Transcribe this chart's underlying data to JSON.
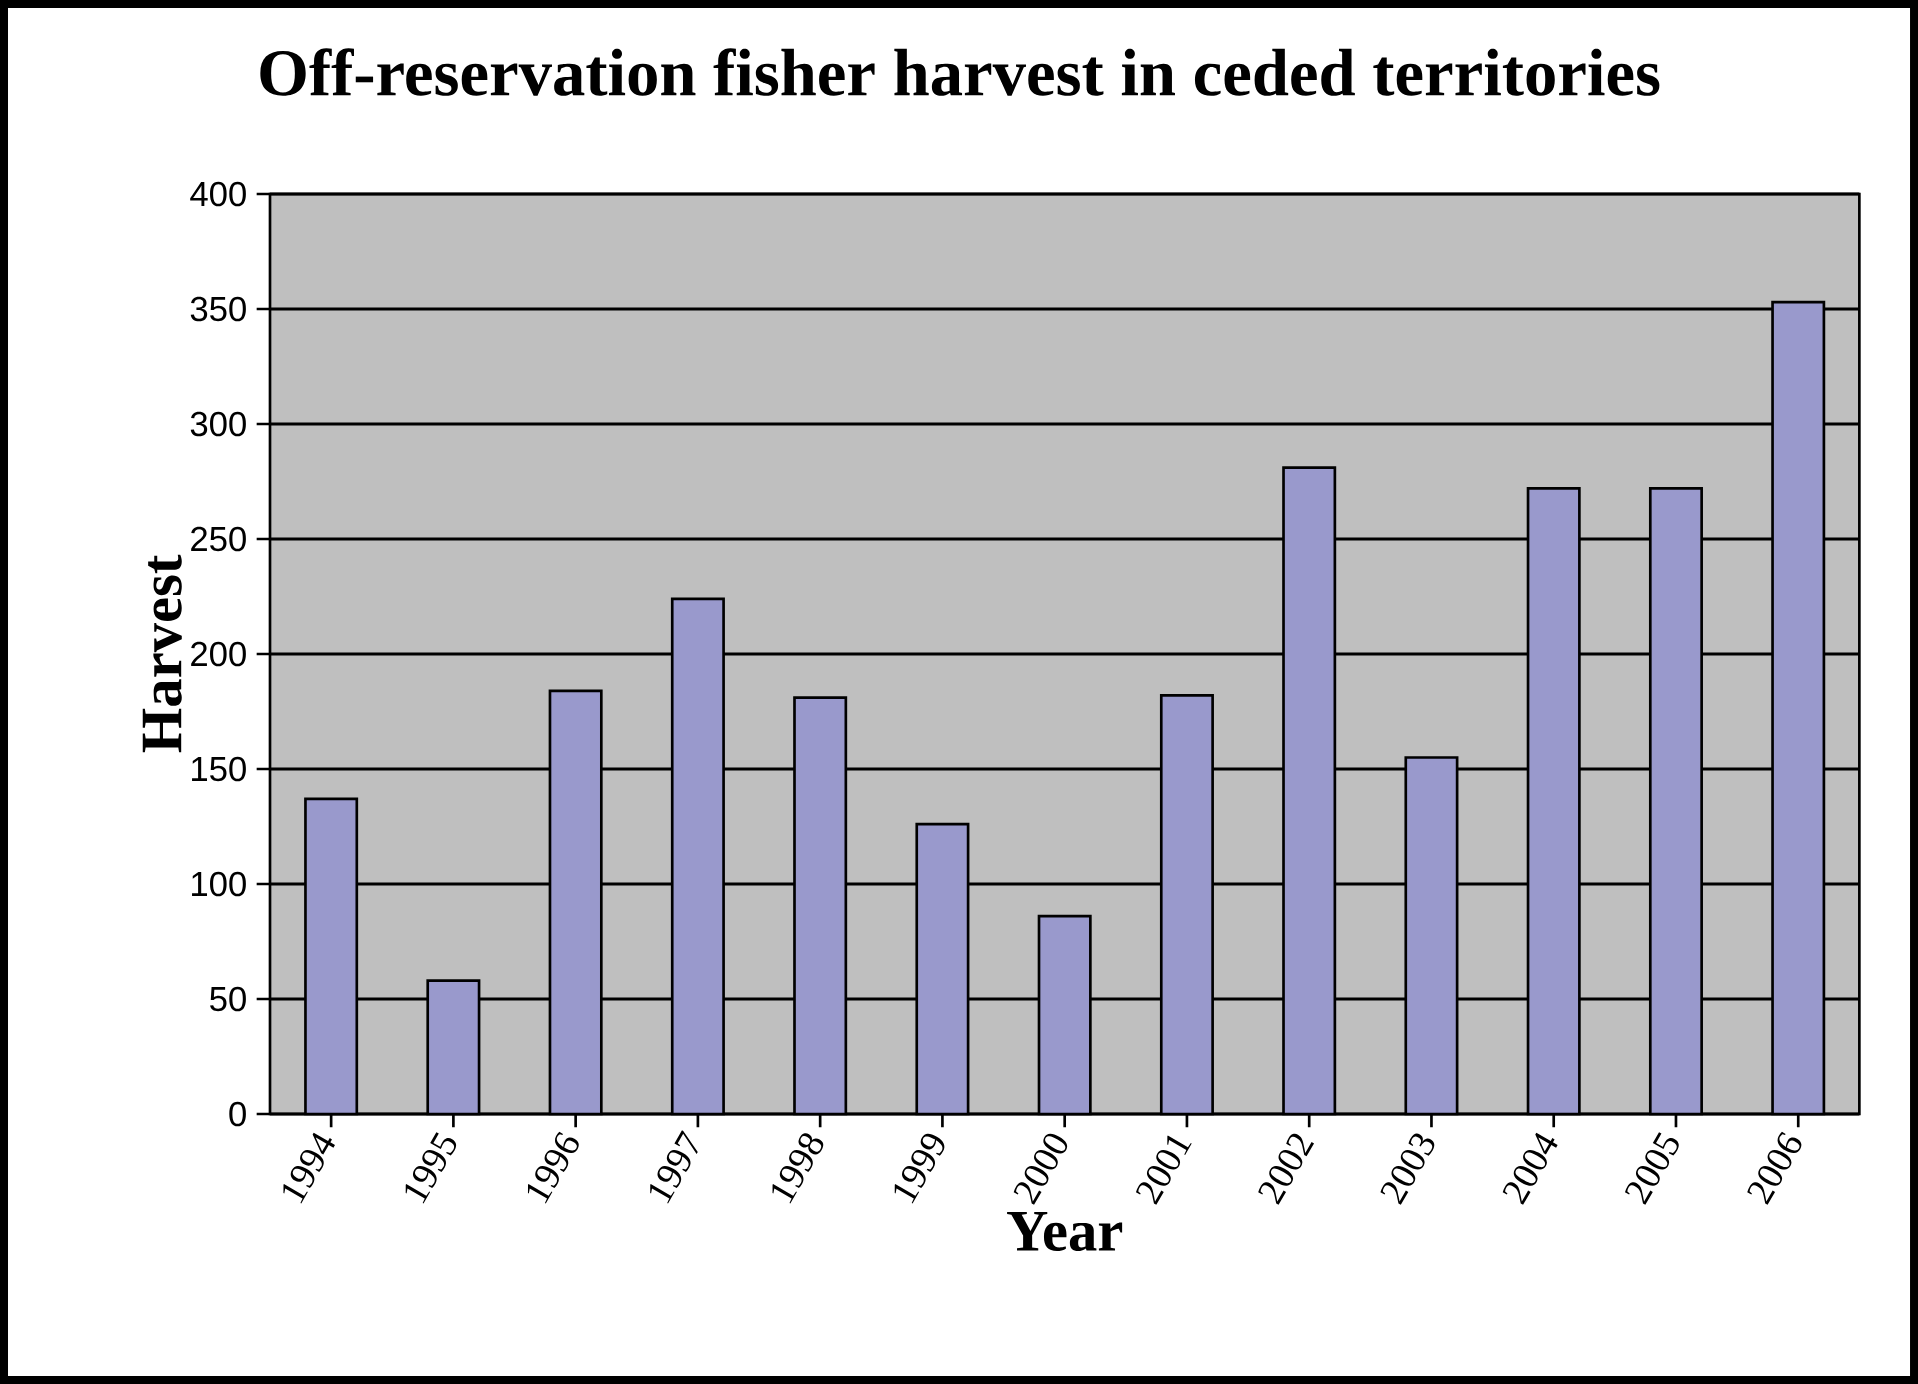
{
  "chart_data": {
    "type": "bar",
    "title": "Off-reservation fisher harvest in ceded territories",
    "xlabel": "Year",
    "ylabel": "Harvest",
    "categories": [
      "1994",
      "1995",
      "1996",
      "1997",
      "1998",
      "1999",
      "2000",
      "2001",
      "2002",
      "2003",
      "2004",
      "2005",
      "2006"
    ],
    "values": [
      137,
      58,
      184,
      224,
      181,
      126,
      86,
      182,
      281,
      155,
      272,
      272,
      353
    ],
    "color": "#9999cc",
    "ylim": [
      0,
      400
    ],
    "yticks": [
      0,
      50,
      100,
      150,
      200,
      250,
      300,
      350,
      400
    ],
    "grid": "y"
  }
}
